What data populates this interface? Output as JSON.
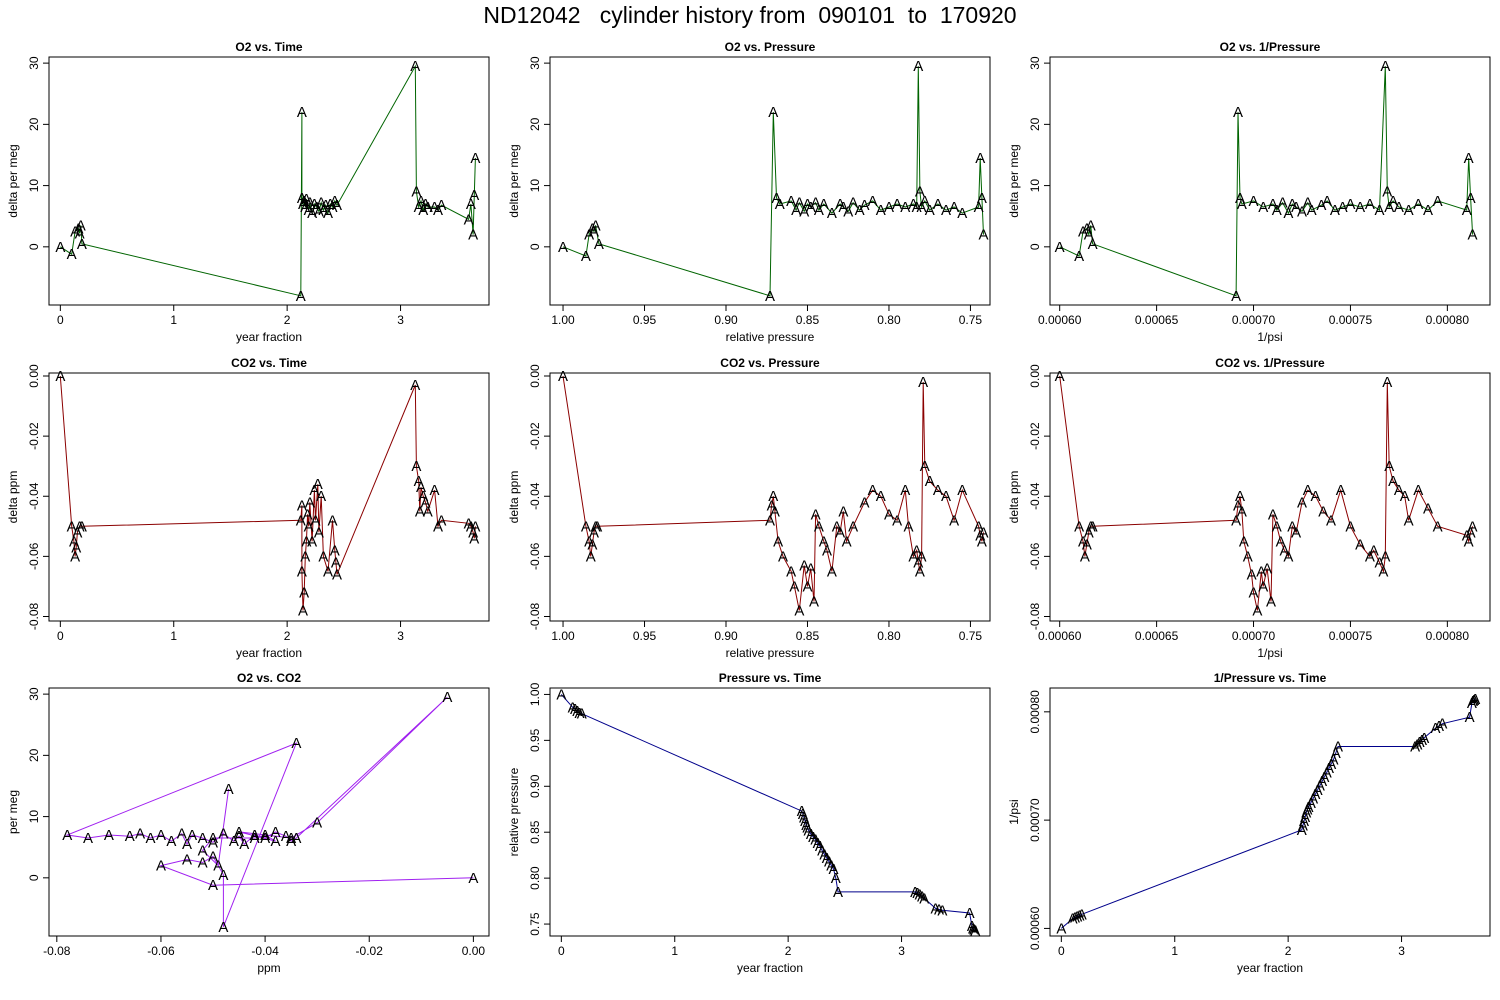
{
  "title": "ND12042   cylinder history from  090101  to  170920",
  "colors": {
    "o2": "#006400",
    "co2": "#8b0000",
    "mix": "#a020f0",
    "pressure": "#00008b"
  },
  "marker": "A",
  "chart_data": [
    {
      "type": "line",
      "title": "O2 vs. Time",
      "xlabel": "year fraction",
      "ylabel": "delta per meg",
      "color": "o2",
      "xlim": [
        -0.1,
        3.78
      ],
      "ylim": [
        -9.5,
        31
      ],
      "xticks": [
        0,
        1,
        2,
        3
      ],
      "xticklabels": [
        "0",
        "1",
        "2",
        "3"
      ],
      "yticks": [
        0,
        10,
        20,
        30
      ],
      "yticklabels": [
        "0",
        "10",
        "20",
        "30"
      ],
      "x": [
        0.0,
        0.1,
        0.13,
        0.16,
        0.17,
        0.18,
        0.19,
        2.12,
        2.13,
        2.13,
        2.14,
        2.15,
        2.16,
        2.17,
        2.19,
        2.2,
        2.22,
        2.24,
        2.26,
        2.28,
        2.3,
        2.32,
        2.34,
        2.36,
        2.38,
        2.4,
        2.42,
        2.44,
        3.13,
        3.14,
        3.16,
        3.18,
        3.2,
        3.22,
        3.24,
        3.3,
        3.33,
        3.36,
        3.6,
        3.62,
        3.64,
        3.65,
        3.66
      ],
      "y": [
        0.0,
        -1.2,
        2.5,
        3.0,
        2.2,
        3.5,
        0.5,
        -8.0,
        22.0,
        8.0,
        7.0,
        7.5,
        6.5,
        7.8,
        6.0,
        7.2,
        5.5,
        7.0,
        6.5,
        5.8,
        7.2,
        6.0,
        6.8,
        5.5,
        7.0,
        6.5,
        7.5,
        6.8,
        29.5,
        9.0,
        6.5,
        7.5,
        6.0,
        7.0,
        6.5,
        6.5,
        6.0,
        6.8,
        4.5,
        7.0,
        2.0,
        8.5,
        14.5
      ]
    },
    {
      "type": "line",
      "title": "O2 vs. Pressure",
      "xlabel": "relative pressure",
      "ylabel": "delta per meg",
      "color": "o2",
      "xlim": [
        1.008,
        0.738
      ],
      "ylim": [
        -9.5,
        31
      ],
      "xticks": [
        1.0,
        0.95,
        0.9,
        0.85,
        0.8,
        0.75
      ],
      "xticklabels": [
        "1.00",
        "0.95",
        "0.90",
        "0.85",
        "0.80",
        "0.75"
      ],
      "yticks": [
        0,
        10,
        20,
        30
      ],
      "yticklabels": [
        "0",
        "10",
        "20",
        "30"
      ],
      "x": [
        1.0,
        0.986,
        0.984,
        0.982,
        0.981,
        0.98,
        0.978,
        0.873,
        0.871,
        0.869,
        0.867,
        0.86,
        0.857,
        0.855,
        0.852,
        0.85,
        0.848,
        0.845,
        0.843,
        0.84,
        0.835,
        0.83,
        0.828,
        0.825,
        0.822,
        0.818,
        0.815,
        0.81,
        0.805,
        0.8,
        0.795,
        0.79,
        0.785,
        0.783,
        0.782,
        0.781,
        0.78,
        0.778,
        0.775,
        0.77,
        0.765,
        0.76,
        0.755,
        0.745,
        0.744,
        0.743,
        0.742
      ],
      "y": [
        0.0,
        -1.5,
        2.0,
        3.0,
        2.5,
        3.5,
        0.5,
        -8.0,
        22.0,
        8.0,
        7.0,
        7.5,
        6.0,
        7.2,
        5.8,
        7.0,
        6.5,
        7.2,
        6.0,
        7.0,
        5.5,
        7.0,
        6.5,
        5.8,
        7.2,
        6.0,
        6.8,
        7.5,
        6.0,
        6.5,
        7.0,
        6.5,
        7.0,
        6.5,
        29.5,
        9.0,
        6.5,
        7.5,
        6.0,
        7.0,
        6.0,
        6.5,
        5.5,
        6.5,
        14.5,
        8.0,
        2.0
      ]
    },
    {
      "type": "line",
      "title": "O2 vs. 1/Pressure",
      "xlabel": "1/psi",
      "ylabel": "delta per meg",
      "color": "o2",
      "xlim": [
        0.000595,
        0.000822
      ],
      "ylim": [
        -9.5,
        31
      ],
      "xticks": [
        0.0006,
        0.00065,
        0.0007,
        0.00075,
        0.0008
      ],
      "xticklabels": [
        "0.00060",
        "0.00065",
        "0.00070",
        "0.00075",
        "0.00080"
      ],
      "yticks": [
        0,
        10,
        20,
        30
      ],
      "yticklabels": [
        "0",
        "10",
        "20",
        "30"
      ],
      "x": [
        0.0006,
        0.00061,
        0.000612,
        0.000614,
        0.000615,
        0.000616,
        0.000617,
        0.000691,
        0.000692,
        0.000693,
        0.000694,
        0.0007,
        0.000705,
        0.00071,
        0.000712,
        0.000715,
        0.000718,
        0.00072,
        0.000722,
        0.000725,
        0.000728,
        0.00073,
        0.000735,
        0.000738,
        0.000742,
        0.000746,
        0.00075,
        0.000755,
        0.00076,
        0.000765,
        0.000768,
        0.000769,
        0.00077,
        0.000772,
        0.000775,
        0.00078,
        0.000785,
        0.00079,
        0.000795,
        0.00081,
        0.000811,
        0.000812,
        0.000813
      ],
      "y": [
        0.0,
        -1.5,
        2.5,
        3.0,
        2.0,
        3.5,
        0.5,
        -8.0,
        22.0,
        8.0,
        7.0,
        7.5,
        6.5,
        7.0,
        6.0,
        7.2,
        5.5,
        7.0,
        6.5,
        5.8,
        7.2,
        6.0,
        6.8,
        7.5,
        6.0,
        6.5,
        7.0,
        6.5,
        7.0,
        6.0,
        29.5,
        9.0,
        6.5,
        7.5,
        6.5,
        6.0,
        7.0,
        6.0,
        7.5,
        6.0,
        14.5,
        8.0,
        2.0
      ]
    },
    {
      "type": "line",
      "title": "CO2 vs. Time",
      "xlabel": "year fraction",
      "ylabel": "delta ppm",
      "color": "co2",
      "xlim": [
        -0.1,
        3.78
      ],
      "ylim": [
        -0.0815,
        0.001
      ],
      "xticks": [
        0,
        1,
        2,
        3
      ],
      "xticklabels": [
        "0",
        "1",
        "2",
        "3"
      ],
      "yticks": [
        0.0,
        -0.02,
        -0.04,
        -0.06,
        -0.08
      ],
      "yticklabels": [
        "0.00",
        "-0.02",
        "-0.04",
        "-0.06",
        "-0.08"
      ],
      "x": [
        0.0,
        0.1,
        0.12,
        0.13,
        0.14,
        0.15,
        0.17,
        0.19,
        2.12,
        2.13,
        2.13,
        2.14,
        2.15,
        2.16,
        2.17,
        2.18,
        2.19,
        2.2,
        2.22,
        2.24,
        2.25,
        2.27,
        2.28,
        2.3,
        2.32,
        2.36,
        2.4,
        2.42,
        2.43,
        2.44,
        3.13,
        3.14,
        3.16,
        3.17,
        3.18,
        3.2,
        3.22,
        3.24,
        3.3,
        3.33,
        3.36,
        3.6,
        3.62,
        3.64,
        3.65,
        3.66
      ],
      "y": [
        0.0,
        -0.05,
        -0.055,
        -0.06,
        -0.057,
        -0.052,
        -0.05,
        -0.05,
        -0.048,
        -0.043,
        -0.065,
        -0.078,
        -0.072,
        -0.06,
        -0.055,
        -0.046,
        -0.05,
        -0.042,
        -0.055,
        -0.038,
        -0.048,
        -0.036,
        -0.052,
        -0.04,
        -0.06,
        -0.065,
        -0.048,
        -0.058,
        -0.062,
        -0.066,
        -0.003,
        -0.03,
        -0.035,
        -0.045,
        -0.037,
        -0.04,
        -0.042,
        -0.045,
        -0.038,
        -0.05,
        -0.048,
        -0.049,
        -0.05,
        -0.052,
        -0.054,
        -0.05
      ]
    },
    {
      "type": "line",
      "title": "CO2 vs. Pressure",
      "xlabel": "relative pressure",
      "ylabel": "delta ppm",
      "color": "co2",
      "xlim": [
        1.008,
        0.738
      ],
      "ylim": [
        -0.0815,
        0.001
      ],
      "xticks": [
        1.0,
        0.95,
        0.9,
        0.85,
        0.8,
        0.75
      ],
      "xticklabels": [
        "1.00",
        "0.95",
        "0.90",
        "0.85",
        "0.80",
        "0.75"
      ],
      "yticks": [
        0.0,
        -0.02,
        -0.04,
        -0.06,
        -0.08
      ],
      "yticklabels": [
        "0.00",
        "-0.02",
        "-0.04",
        "-0.06",
        "-0.08"
      ],
      "x": [
        1.0,
        0.986,
        0.984,
        0.983,
        0.982,
        0.981,
        0.98,
        0.979,
        0.873,
        0.872,
        0.871,
        0.87,
        0.868,
        0.865,
        0.86,
        0.858,
        0.855,
        0.852,
        0.85,
        0.848,
        0.846,
        0.845,
        0.843,
        0.84,
        0.838,
        0.835,
        0.832,
        0.83,
        0.828,
        0.826,
        0.822,
        0.815,
        0.81,
        0.805,
        0.8,
        0.795,
        0.79,
        0.788,
        0.785,
        0.783,
        0.782,
        0.781,
        0.78,
        0.779,
        0.778,
        0.775,
        0.77,
        0.765,
        0.76,
        0.755,
        0.745,
        0.744,
        0.743,
        0.742
      ],
      "y": [
        0.0,
        -0.05,
        -0.055,
        -0.06,
        -0.056,
        -0.052,
        -0.05,
        -0.05,
        -0.048,
        -0.043,
        -0.04,
        -0.045,
        -0.055,
        -0.06,
        -0.065,
        -0.07,
        -0.078,
        -0.063,
        -0.07,
        -0.064,
        -0.075,
        -0.046,
        -0.05,
        -0.055,
        -0.058,
        -0.065,
        -0.05,
        -0.052,
        -0.045,
        -0.055,
        -0.05,
        -0.042,
        -0.038,
        -0.04,
        -0.046,
        -0.048,
        -0.038,
        -0.05,
        -0.06,
        -0.058,
        -0.062,
        -0.065,
        -0.06,
        -0.002,
        -0.03,
        -0.035,
        -0.038,
        -0.04,
        -0.048,
        -0.038,
        -0.05,
        -0.053,
        -0.055,
        -0.052
      ]
    },
    {
      "type": "line",
      "title": "CO2 vs. 1/Pressure",
      "xlabel": "1/psi",
      "ylabel": "delta ppm",
      "color": "co2",
      "xlim": [
        0.000595,
        0.000822
      ],
      "ylim": [
        -0.0815,
        0.001
      ],
      "xticks": [
        0.0006,
        0.00065,
        0.0007,
        0.00075,
        0.0008
      ],
      "xticklabels": [
        "0.00060",
        "0.00065",
        "0.00070",
        "0.00075",
        "0.00080"
      ],
      "yticks": [
        0.0,
        -0.02,
        -0.04,
        -0.06,
        -0.08
      ],
      "yticklabels": [
        "0.00",
        "-0.02",
        "-0.04",
        "-0.06",
        "-0.08"
      ],
      "x": [
        0.0006,
        0.00061,
        0.000612,
        0.000613,
        0.000614,
        0.000615,
        0.000616,
        0.000617,
        0.000691,
        0.000692,
        0.000693,
        0.000694,
        0.000695,
        0.000697,
        0.000699,
        0.0007,
        0.000702,
        0.000704,
        0.000705,
        0.000707,
        0.000709,
        0.00071,
        0.000712,
        0.000714,
        0.000716,
        0.000718,
        0.00072,
        0.000722,
        0.000725,
        0.000728,
        0.000732,
        0.000736,
        0.00074,
        0.000745,
        0.00075,
        0.000755,
        0.00076,
        0.000762,
        0.000765,
        0.000767,
        0.000768,
        0.000769,
        0.00077,
        0.000772,
        0.000775,
        0.000778,
        0.00078,
        0.000785,
        0.00079,
        0.000795,
        0.00081,
        0.000811,
        0.000812,
        0.000813
      ],
      "y": [
        0.0,
        -0.05,
        -0.055,
        -0.06,
        -0.056,
        -0.052,
        -0.05,
        -0.05,
        -0.048,
        -0.043,
        -0.04,
        -0.045,
        -0.055,
        -0.06,
        -0.066,
        -0.072,
        -0.078,
        -0.065,
        -0.07,
        -0.064,
        -0.075,
        -0.046,
        -0.05,
        -0.055,
        -0.058,
        -0.06,
        -0.05,
        -0.052,
        -0.042,
        -0.038,
        -0.04,
        -0.045,
        -0.048,
        -0.038,
        -0.05,
        -0.056,
        -0.06,
        -0.058,
        -0.062,
        -0.065,
        -0.06,
        -0.002,
        -0.03,
        -0.035,
        -0.038,
        -0.04,
        -0.048,
        -0.038,
        -0.044,
        -0.05,
        -0.053,
        -0.055,
        -0.052,
        -0.05
      ]
    },
    {
      "type": "line",
      "title": "O2 vs. CO2",
      "xlabel": "ppm",
      "ylabel": "per meg",
      "color": "mix",
      "xlim": [
        -0.0815,
        0.003
      ],
      "ylim": [
        -9.5,
        31
      ],
      "xticks": [
        -0.08,
        -0.06,
        -0.04,
        -0.02,
        0.0
      ],
      "xticklabels": [
        "-0.08",
        "-0.06",
        "-0.04",
        "-0.02",
        "0.00"
      ],
      "yticks": [
        0,
        10,
        20,
        30
      ],
      "yticklabels": [
        "0",
        "10",
        "20",
        "30"
      ],
      "x": [
        0.0,
        -0.05,
        -0.06,
        -0.055,
        -0.052,
        -0.05,
        -0.048,
        -0.048,
        -0.034,
        -0.078,
        -0.074,
        -0.07,
        -0.066,
        -0.064,
        -0.062,
        -0.06,
        -0.058,
        -0.056,
        -0.055,
        -0.054,
        -0.052,
        -0.05,
        -0.048,
        -0.046,
        -0.045,
        -0.044,
        -0.042,
        -0.04,
        -0.038,
        -0.036,
        -0.035,
        -0.034,
        -0.005,
        -0.03,
        -0.035,
        -0.045,
        -0.038,
        -0.04,
        -0.042,
        -0.05,
        -0.052,
        -0.049,
        -0.047
      ],
      "y": [
        0.0,
        -1.2,
        2.0,
        3.0,
        2.5,
        3.5,
        0.5,
        -8.0,
        22.0,
        7.0,
        6.5,
        7.0,
        6.8,
        7.2,
        6.5,
        7.0,
        6.0,
        7.2,
        5.5,
        7.0,
        6.5,
        5.8,
        7.2,
        6.0,
        6.8,
        5.5,
        7.0,
        6.5,
        7.5,
        6.8,
        6.0,
        6.5,
        29.5,
        9.0,
        6.5,
        7.5,
        6.0,
        7.0,
        6.5,
        6.5,
        4.5,
        2.0,
        14.5
      ]
    },
    {
      "type": "line",
      "title": "Pressure vs. Time",
      "xlabel": "year fraction",
      "ylabel": "relative pressure",
      "color": "pressure",
      "xlim": [
        -0.1,
        3.78
      ],
      "ylim": [
        0.737,
        1.007
      ],
      "xticks": [
        0,
        1,
        2,
        3
      ],
      "xticklabels": [
        "0",
        "1",
        "2",
        "3"
      ],
      "yticks": [
        0.75,
        0.8,
        0.85,
        0.9,
        0.95,
        1.0
      ],
      "yticklabels": [
        "0.75",
        "0.80",
        "0.85",
        "0.90",
        "0.95",
        "1.00"
      ],
      "x": [
        0.0,
        0.1,
        0.12,
        0.14,
        0.16,
        0.18,
        2.12,
        2.13,
        2.14,
        2.15,
        2.16,
        2.17,
        2.18,
        2.2,
        2.22,
        2.24,
        2.26,
        2.28,
        2.3,
        2.32,
        2.34,
        2.36,
        2.38,
        2.4,
        2.42,
        2.44,
        3.12,
        3.14,
        3.16,
        3.18,
        3.2,
        3.3,
        3.33,
        3.36,
        3.6,
        3.62,
        3.63,
        3.64,
        3.65
      ],
      "y": [
        1.0,
        0.986,
        0.984,
        0.982,
        0.98,
        0.979,
        0.873,
        0.87,
        0.866,
        0.862,
        0.858,
        0.855,
        0.852,
        0.848,
        0.845,
        0.842,
        0.838,
        0.835,
        0.83,
        0.826,
        0.822,
        0.818,
        0.814,
        0.81,
        0.8,
        0.785,
        0.785,
        0.784,
        0.782,
        0.78,
        0.778,
        0.767,
        0.766,
        0.765,
        0.762,
        0.748,
        0.745,
        0.744,
        0.743
      ]
    },
    {
      "type": "line",
      "title": "1/Pressure vs. Time",
      "xlabel": "year fraction",
      "ylabel": "1/psi",
      "color": "pressure",
      "xlim": [
        -0.1,
        3.78
      ],
      "ylim": [
        0.000593,
        0.000822
      ],
      "xticks": [
        0,
        1,
        2,
        3
      ],
      "xticklabels": [
        "0",
        "1",
        "2",
        "3"
      ],
      "yticks": [
        0.0006,
        0.0007,
        0.0008
      ],
      "yticklabels": [
        "0.00060",
        "0.00070",
        "0.00080"
      ],
      "x": [
        0.0,
        0.1,
        0.12,
        0.14,
        0.16,
        0.18,
        2.12,
        2.13,
        2.14,
        2.15,
        2.16,
        2.17,
        2.18,
        2.2,
        2.22,
        2.24,
        2.26,
        2.28,
        2.3,
        2.32,
        2.34,
        2.36,
        2.38,
        2.4,
        2.42,
        2.44,
        3.12,
        3.14,
        3.16,
        3.18,
        3.2,
        3.3,
        3.33,
        3.36,
        3.6,
        3.62,
        3.63,
        3.64,
        3.65
      ],
      "y": [
        0.0006,
        0.000609,
        0.00061,
        0.000611,
        0.000612,
        0.000613,
        0.000691,
        0.000695,
        0.000699,
        0.000703,
        0.000707,
        0.00071,
        0.000712,
        0.000716,
        0.00072,
        0.000724,
        0.000728,
        0.000732,
        0.000736,
        0.00074,
        0.000744,
        0.000748,
        0.000752,
        0.000756,
        0.000762,
        0.000768,
        0.000768,
        0.00077,
        0.000772,
        0.000774,
        0.000776,
        0.000785,
        0.000787,
        0.000789,
        0.000795,
        0.000808,
        0.00081,
        0.000811,
        0.000812
      ]
    }
  ]
}
